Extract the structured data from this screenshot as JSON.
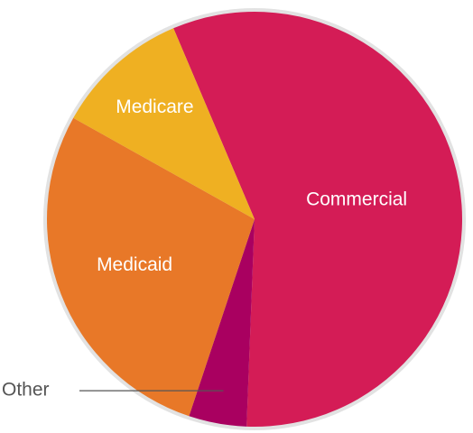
{
  "chart_data": {
    "type": "pie",
    "title": "",
    "slices": [
      {
        "label": "Commercial",
        "value": 57,
        "color": "#d41c56"
      },
      {
        "label": "Other",
        "value": 4.5,
        "color": "#a90060"
      },
      {
        "label": "Medicaid",
        "value": 28,
        "color": "#e87828"
      },
      {
        "label": "Medicare",
        "value": 10.5,
        "color": "#efb022"
      }
    ],
    "border_color": "#e2e2e2"
  }
}
